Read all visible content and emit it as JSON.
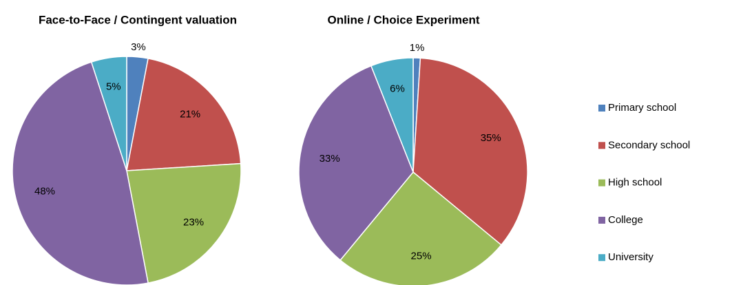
{
  "chart_data": [
    {
      "type": "pie",
      "title": "Face-to-Face / Contingent valuation",
      "categories": [
        "Primary school",
        "Secondary school",
        "High school",
        "College",
        "University"
      ],
      "colors": [
        "#4f81bd",
        "#c0504d",
        "#9bbb59",
        "#8064a2",
        "#4bacc6"
      ],
      "values": [
        3,
        21,
        23,
        48,
        5
      ],
      "value_labels": [
        "3%",
        "21%",
        "23%",
        "48%",
        "5%"
      ],
      "legend": "right"
    },
    {
      "type": "pie",
      "title": "Online / Choice Experiment",
      "categories": [
        "Primary school",
        "Secondary school",
        "High school",
        "College",
        "University"
      ],
      "colors": [
        "#4f81bd",
        "#c0504d",
        "#9bbb59",
        "#8064a2",
        "#4bacc6"
      ],
      "values": [
        1,
        35,
        25,
        33,
        6
      ],
      "value_labels": [
        "1%",
        "35%",
        "25%",
        "33%",
        "6%"
      ]
    }
  ]
}
